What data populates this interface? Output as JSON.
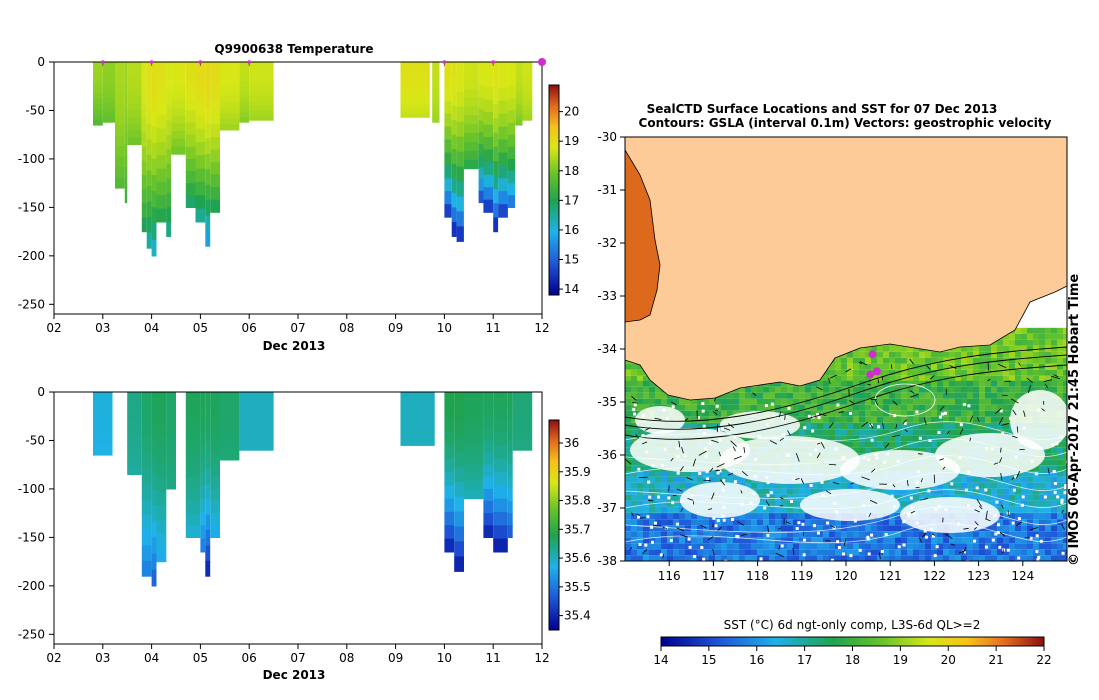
{
  "credit": "© IMOS 06-Apr-2017 21:45 Hobart Time",
  "chart_data": [
    {
      "type": "heatmap",
      "title": "Q9900638  Temperature",
      "xlabel": "Dec 2013",
      "ylabel": "",
      "x_ticks": [
        "02",
        "03",
        "04",
        "05",
        "06",
        "07",
        "08",
        "09",
        "10",
        "11",
        "12"
      ],
      "xlim": [
        2,
        12
      ],
      "ylim": [
        -260,
        0
      ],
      "y_ticks": [
        0,
        -50,
        -100,
        -150,
        -200,
        -250
      ],
      "colorbar": {
        "min": 13.8,
        "max": 20.9,
        "ticks": [
          14,
          15,
          16,
          17,
          18,
          19,
          20
        ]
      },
      "profile_markers_day": [
        3,
        4,
        5,
        6,
        10,
        11,
        12
      ],
      "profiles": [
        {
          "t0": 2.8,
          "t1": 3.0,
          "depth": -65,
          "surface": 18.3,
          "bottom": 17.6
        },
        {
          "t0": 3.0,
          "t1": 3.25,
          "depth": -62,
          "surface": 18.2,
          "bottom": 17.8
        },
        {
          "t0": 3.25,
          "t1": 3.45,
          "depth": -130,
          "surface": 18.4,
          "bottom": 17.6
        },
        {
          "t0": 3.45,
          "t1": 3.5,
          "depth": -145,
          "surface": 18.3,
          "bottom": 17.3
        },
        {
          "t0": 3.5,
          "t1": 3.8,
          "depth": -85,
          "surface": 18.5,
          "bottom": 17.9
        },
        {
          "t0": 3.8,
          "t1": 3.9,
          "depth": -175,
          "surface": 18.8,
          "bottom": 16.8
        },
        {
          "t0": 3.9,
          "t1": 4.0,
          "depth": -192,
          "surface": 18.9,
          "bottom": 16.2
        },
        {
          "t0": 4.0,
          "t1": 4.1,
          "depth": -200,
          "surface": 19.0,
          "bottom": 15.9
        },
        {
          "t0": 4.1,
          "t1": 4.3,
          "depth": -165,
          "surface": 18.9,
          "bottom": 16.9
        },
        {
          "t0": 4.3,
          "t1": 4.4,
          "depth": -180,
          "surface": 18.8,
          "bottom": 16.4
        },
        {
          "t0": 4.4,
          "t1": 4.7,
          "depth": -95,
          "surface": 18.8,
          "bottom": 17.9
        },
        {
          "t0": 4.7,
          "t1": 4.9,
          "depth": -150,
          "surface": 18.9,
          "bottom": 16.6
        },
        {
          "t0": 4.9,
          "t1": 5.1,
          "depth": -165,
          "surface": 19.0,
          "bottom": 16.3
        },
        {
          "t0": 5.1,
          "t1": 5.2,
          "depth": -190,
          "surface": 19.1,
          "bottom": 15.4
        },
        {
          "t0": 5.2,
          "t1": 5.4,
          "depth": -155,
          "surface": 19.0,
          "bottom": 16.8
        },
        {
          "t0": 5.4,
          "t1": 5.8,
          "depth": -70,
          "surface": 18.8,
          "bottom": 18.3
        },
        {
          "t0": 5.8,
          "t1": 6.0,
          "depth": -62,
          "surface": 18.6,
          "bottom": 18.1
        },
        {
          "t0": 6.0,
          "t1": 6.5,
          "depth": -60,
          "surface": 18.7,
          "bottom": 18.3
        },
        {
          "t0": 9.1,
          "t1": 9.7,
          "depth": -57,
          "surface": 18.9,
          "bottom": 18.6
        },
        {
          "t0": 9.75,
          "t1": 9.9,
          "depth": -62,
          "surface": 18.6,
          "bottom": 18.3
        },
        {
          "t0": 10.0,
          "t1": 10.15,
          "depth": -160,
          "surface": 18.9,
          "bottom": 14.2
        },
        {
          "t0": 10.15,
          "t1": 10.25,
          "depth": -180,
          "surface": 18.9,
          "bottom": 14.0
        },
        {
          "t0": 10.25,
          "t1": 10.4,
          "depth": -185,
          "surface": 18.8,
          "bottom": 14.1
        },
        {
          "t0": 10.4,
          "t1": 10.7,
          "depth": -110,
          "surface": 18.7,
          "bottom": 17.0
        },
        {
          "t0": 10.7,
          "t1": 10.8,
          "depth": -145,
          "surface": 18.8,
          "bottom": 14.5
        },
        {
          "t0": 10.8,
          "t1": 11.0,
          "depth": -155,
          "surface": 18.8,
          "bottom": 14.2
        },
        {
          "t0": 11.0,
          "t1": 11.1,
          "depth": -175,
          "surface": 18.9,
          "bottom": 14.0
        },
        {
          "t0": 11.1,
          "t1": 11.3,
          "depth": -160,
          "surface": 18.8,
          "bottom": 14.3
        },
        {
          "t0": 11.3,
          "t1": 11.45,
          "depth": -150,
          "surface": 18.8,
          "bottom": 15.0
        },
        {
          "t0": 11.45,
          "t1": 11.6,
          "depth": -65,
          "surface": 18.6,
          "bottom": 18.0
        },
        {
          "t0": 11.6,
          "t1": 11.8,
          "depth": -60,
          "surface": 18.7,
          "bottom": 18.3
        }
      ]
    },
    {
      "type": "heatmap",
      "title": "",
      "xlabel": "Dec 2013",
      "ylabel": "",
      "x_ticks": [
        "02",
        "03",
        "04",
        "05",
        "06",
        "07",
        "08",
        "09",
        "10",
        "11",
        "12"
      ],
      "xlim": [
        2,
        12
      ],
      "ylim": [
        -260,
        0
      ],
      "y_ticks": [
        0,
        -50,
        -100,
        -150,
        -200,
        -250
      ],
      "colorbar": {
        "min": 35.35,
        "max": 36.08,
        "ticks": [
          35.4,
          35.5,
          35.6,
          35.7,
          35.8,
          35.9,
          36
        ]
      },
      "profiles": [
        {
          "t0": 2.8,
          "t1": 3.2,
          "depth": -65,
          "surface": 35.58,
          "bottom": 35.57
        },
        {
          "t0": 3.5,
          "t1": 3.8,
          "depth": -85,
          "surface": 35.64,
          "bottom": 35.62
        },
        {
          "t0": 3.8,
          "t1": 4.0,
          "depth": -190,
          "surface": 35.66,
          "bottom": 35.5
        },
        {
          "t0": 4.0,
          "t1": 4.1,
          "depth": -200,
          "surface": 35.67,
          "bottom": 35.46
        },
        {
          "t0": 4.1,
          "t1": 4.3,
          "depth": -175,
          "surface": 35.67,
          "bottom": 35.55
        },
        {
          "t0": 4.3,
          "t1": 4.5,
          "depth": -100,
          "surface": 35.66,
          "bottom": 35.64
        },
        {
          "t0": 4.7,
          "t1": 5.0,
          "depth": -150,
          "surface": 35.67,
          "bottom": 35.58
        },
        {
          "t0": 5.0,
          "t1": 5.1,
          "depth": -165,
          "surface": 35.67,
          "bottom": 35.5
        },
        {
          "t0": 5.1,
          "t1": 5.2,
          "depth": -190,
          "surface": 35.67,
          "bottom": 35.38
        },
        {
          "t0": 5.2,
          "t1": 5.4,
          "depth": -150,
          "surface": 35.67,
          "bottom": 35.55
        },
        {
          "t0": 5.4,
          "t1": 5.8,
          "depth": -70,
          "surface": 35.66,
          "bottom": 35.65
        },
        {
          "t0": 5.8,
          "t1": 6.5,
          "depth": -60,
          "surface": 35.6,
          "bottom": 35.6
        },
        {
          "t0": 9.1,
          "t1": 9.8,
          "depth": -55,
          "surface": 35.6,
          "bottom": 35.6
        },
        {
          "t0": 10.0,
          "t1": 10.2,
          "depth": -165,
          "surface": 35.68,
          "bottom": 35.38
        },
        {
          "t0": 10.2,
          "t1": 10.4,
          "depth": -185,
          "surface": 35.68,
          "bottom": 35.37
        },
        {
          "t0": 10.4,
          "t1": 10.8,
          "depth": -110,
          "surface": 35.67,
          "bottom": 35.6
        },
        {
          "t0": 10.8,
          "t1": 11.0,
          "depth": -150,
          "surface": 35.67,
          "bottom": 35.38
        },
        {
          "t0": 11.0,
          "t1": 11.3,
          "depth": -165,
          "surface": 35.67,
          "bottom": 35.37
        },
        {
          "t0": 11.3,
          "t1": 11.4,
          "depth": -150,
          "surface": 35.67,
          "bottom": 35.45
        },
        {
          "t0": 11.4,
          "t1": 11.8,
          "depth": -60,
          "surface": 35.65,
          "bottom": 35.64
        }
      ]
    },
    {
      "type": "heatmap",
      "title": "SealCTD Surface Locations and SST for 07 Dec 2013",
      "subtitle": "Contours: GSLA (interval 0.1m) Vectors: geostrophic velocity",
      "xlabel": "",
      "ylabel": "",
      "xlim": [
        115,
        125
      ],
      "ylim": [
        -38,
        -30
      ],
      "x_ticks": [
        116,
        117,
        118,
        119,
        120,
        121,
        122,
        123,
        124
      ],
      "y_ticks": [
        -30,
        -31,
        -32,
        -33,
        -34,
        -35,
        -36,
        -37,
        -38
      ],
      "colorbar": {
        "label": "SST (°C) 6d ngt-only comp, L3S-6d QL>=2",
        "min": 14,
        "max": 22,
        "ticks": [
          14,
          15,
          16,
          17,
          18,
          19,
          20,
          21,
          22
        ]
      },
      "seal_locations": [
        [
          120.55,
          -34.48
        ],
        [
          120.7,
          -34.42
        ],
        [
          120.6,
          -34.1
        ]
      ],
      "sst_bands": [
        {
          "lat_n": -33.6,
          "lat_s": -34.6,
          "value": 18.6
        },
        {
          "lat_n": -34.6,
          "lat_s": -35.4,
          "value": 18.0
        },
        {
          "lat_n": -35.4,
          "lat_s": -36.3,
          "value": 17.4
        },
        {
          "lat_n": -36.3,
          "lat_s": -37.1,
          "value": 16.6
        },
        {
          "lat_n": -37.1,
          "lat_s": -38.0,
          "value": 15.6
        }
      ],
      "west_coast_sst": 20.2
    }
  ]
}
